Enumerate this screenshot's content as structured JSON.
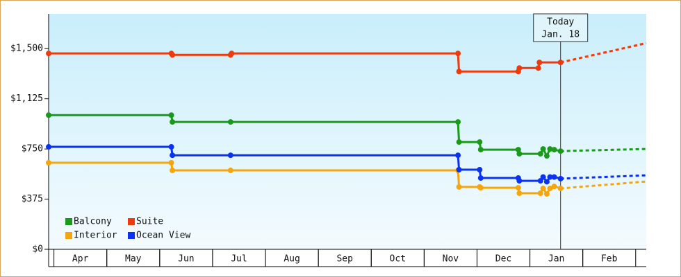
{
  "chart_data": {
    "type": "line",
    "ylim": [
      0,
      1760
    ],
    "yticks": [
      {
        "value": 0,
        "label": "$0"
      },
      {
        "value": 375,
        "label": "$375"
      },
      {
        "value": 750,
        "label": "$750"
      },
      {
        "value": 1125,
        "label": "$1,125"
      },
      {
        "value": 1500,
        "label": "$1,500"
      }
    ],
    "xlim": [
      -0.1,
      11.2
    ],
    "xticks": [
      {
        "value": 0.5,
        "label": "Apr"
      },
      {
        "value": 1.5,
        "label": "May"
      },
      {
        "value": 2.5,
        "label": "Jun"
      },
      {
        "value": 3.5,
        "label": "Jul"
      },
      {
        "value": 4.5,
        "label": "Aug"
      },
      {
        "value": 5.5,
        "label": "Sep"
      },
      {
        "value": 6.5,
        "label": "Oct"
      },
      {
        "value": 7.5,
        "label": "Nov"
      },
      {
        "value": 8.5,
        "label": "Dec"
      },
      {
        "value": 9.5,
        "label": "Jan"
      },
      {
        "value": 10.5,
        "label": "Feb"
      }
    ],
    "today": {
      "x": 9.58,
      "title": "Today",
      "date": "Jan. 18"
    },
    "legend": "lower-left",
    "series": [
      {
        "name": "Balcony",
        "color": "#1a9a1a",
        "x": [
          -0.1,
          2.22,
          2.24,
          3.34,
          7.64,
          7.66,
          8.05,
          8.07,
          8.78,
          8.8,
          9.2,
          9.25,
          9.32,
          9.38,
          9.46,
          9.58
        ],
        "values": [
          1003,
          1003,
          952,
          952,
          952,
          802,
          802,
          745,
          745,
          714,
          714,
          750,
          698,
          750,
          745,
          734
        ],
        "forecast": {
          "x": 11.2,
          "value": 750
        }
      },
      {
        "name": "Suite",
        "color": "#ee3b0e",
        "x": [
          -0.1,
          2.22,
          2.24,
          3.34,
          3.36,
          7.64,
          7.66,
          8.78,
          8.8,
          9.16,
          9.18,
          9.58
        ],
        "values": [
          1464,
          1464,
          1453,
          1453,
          1464,
          1464,
          1329,
          1329,
          1355,
          1355,
          1397,
          1397
        ],
        "forecast": {
          "x": 11.2,
          "value": 1541
        }
      },
      {
        "name": "Interior",
        "color": "#f5a60e",
        "x": [
          -0.1,
          2.22,
          2.24,
          3.34,
          7.64,
          7.66,
          8.05,
          8.07,
          8.78,
          8.8,
          9.2,
          9.25,
          9.32,
          9.38,
          9.46,
          9.58
        ],
        "values": [
          647,
          647,
          590,
          590,
          590,
          466,
          466,
          460,
          460,
          419,
          419,
          455,
          414,
          455,
          470,
          455
        ],
        "forecast": {
          "x": 11.2,
          "value": 507
        }
      },
      {
        "name": "Ocean View",
        "color": "#0a32f0",
        "x": [
          -0.1,
          2.22,
          2.24,
          3.34,
          7.64,
          7.66,
          8.05,
          8.07,
          8.78,
          8.8,
          9.2,
          9.25,
          9.32,
          9.38,
          9.46,
          9.58
        ],
        "values": [
          766,
          766,
          703,
          703,
          703,
          595,
          595,
          533,
          533,
          512,
          512,
          540,
          505,
          540,
          540,
          528
        ],
        "forecast": {
          "x": 11.2,
          "value": 553
        }
      }
    ]
  }
}
